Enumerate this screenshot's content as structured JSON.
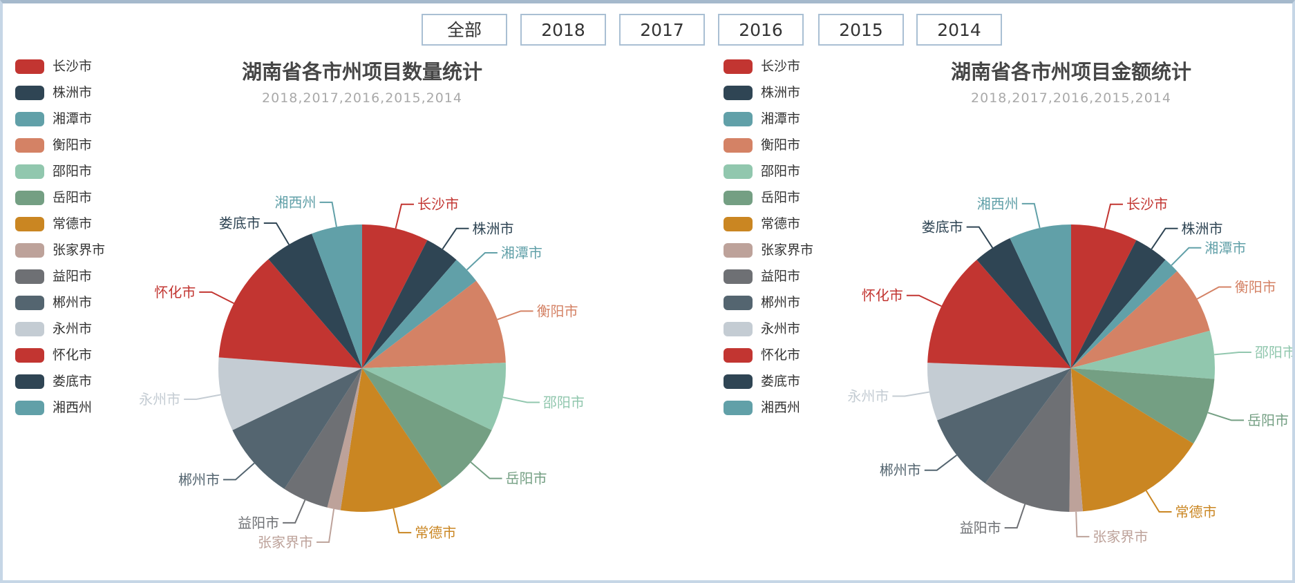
{
  "filters": {
    "items": [
      "全部",
      "2018",
      "2017",
      "2016",
      "2015",
      "2014"
    ]
  },
  "palette": [
    "#c23531",
    "#2f4554",
    "#61a0a8",
    "#d48265",
    "#91c7ae",
    "#749f83",
    "#ca8622",
    "#bda29a",
    "#6e7074",
    "#546570",
    "#c4ccd3"
  ],
  "text_colors": {
    "title": "#464646",
    "subtitle": "#a9a9a9",
    "legend": "#333333"
  },
  "chart_data": [
    {
      "type": "pie",
      "title": "湖南省各市州项目数量统计",
      "subtitle": "2018,2017,2016,2015,2014",
      "legend_position": "left",
      "label_position": "outside-with-leader-lines",
      "categories": [
        "长沙市",
        "株洲市",
        "湘潭市",
        "衡阳市",
        "邵阳市",
        "岳阳市",
        "常德市",
        "张家界市",
        "益阳市",
        "郴州市",
        "永州市",
        "怀化市",
        "娄底市",
        "湘西州"
      ],
      "values_percent": [
        7.5,
        3.9,
        3.2,
        9.8,
        7.7,
        8.5,
        11.8,
        1.5,
        5.2,
        8.8,
        8.3,
        12.5,
        5.6,
        5.7
      ]
    },
    {
      "type": "pie",
      "title": "湖南省各市州项目金额统计",
      "subtitle": "2018,2017,2016,2015,2014",
      "legend_position": "left",
      "label_position": "outside-with-leader-lines",
      "categories": [
        "长沙市",
        "株洲市",
        "湘潭市",
        "衡阳市",
        "邵阳市",
        "岳阳市",
        "常德市",
        "张家界市",
        "益阳市",
        "郴州市",
        "永州市",
        "怀化市",
        "娄底市",
        "湘西州"
      ],
      "values_percent": [
        7.5,
        3.9,
        1.8,
        7.6,
        5.4,
        7.6,
        14.9,
        1.5,
        10,
        8.9,
        6.5,
        13,
        4.4,
        7
      ]
    }
  ]
}
